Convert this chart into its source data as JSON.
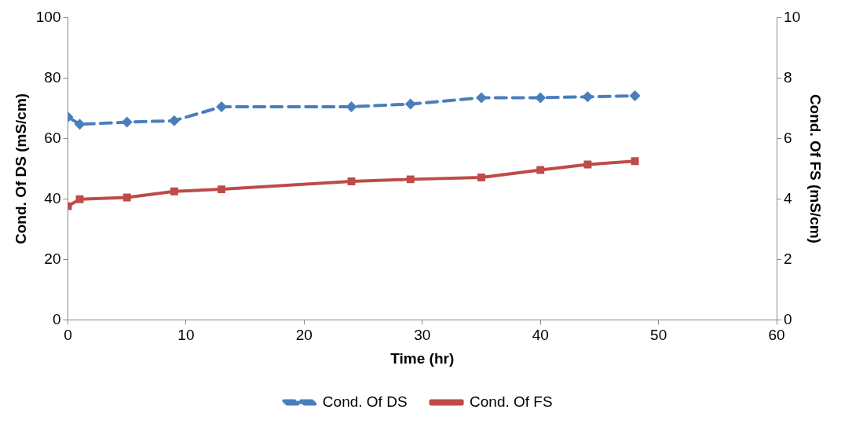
{
  "chart_data": {
    "type": "line",
    "xlabel": "Time (hr)",
    "ylabel": "Cond. Of DS (mS/cm)",
    "y2label": "Cond. Of FS (mS/cm)",
    "x": [
      0,
      1,
      5,
      9,
      13,
      24,
      29,
      35,
      40,
      44,
      48
    ],
    "series": [
      {
        "name": "Cond. Of DS",
        "color": "#4a7ebb",
        "line_style": "dashed",
        "marker": "diamond",
        "values": [
          67.1,
          64.7,
          65.4,
          65.9,
          70.5,
          70.5,
          71.4,
          73.5,
          73.5,
          73.8,
          74.1
        ]
      },
      {
        "name": "Cond. Of FS",
        "color": "#be4b48",
        "line_style": "solid",
        "marker": "square",
        "axis": "y2",
        "values": [
          3.76,
          3.99,
          4.05,
          4.25,
          4.32,
          4.58,
          4.65,
          4.71,
          4.96,
          5.14,
          5.25
        ]
      }
    ],
    "xlim": [
      0,
      60
    ],
    "xticks": [
      0,
      10,
      20,
      30,
      40,
      50,
      60
    ],
    "ylim": [
      0,
      100
    ],
    "yticks": [
      0,
      20,
      40,
      60,
      80,
      100
    ],
    "y2lim": [
      0,
      10
    ],
    "y2ticks": [
      0,
      2,
      4,
      6,
      8,
      10
    ],
    "grid": false,
    "legend": "bottom"
  }
}
